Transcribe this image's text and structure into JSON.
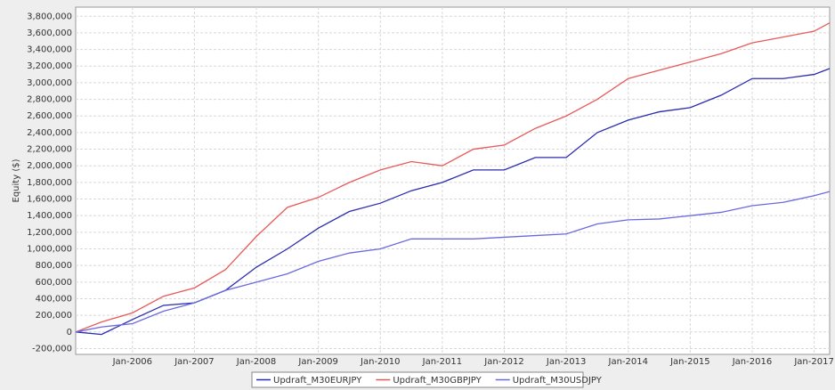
{
  "chart_data": {
    "type": "line",
    "y_label": "Equity ($)",
    "x": [
      "2005-02",
      "2005-07",
      "2006-01",
      "2006-07",
      "2007-01",
      "2007-07",
      "2008-01",
      "2008-07",
      "2009-01",
      "2009-07",
      "2010-01",
      "2010-07",
      "2011-01",
      "2011-07",
      "2012-01",
      "2012-07",
      "2013-01",
      "2013-07",
      "2014-01",
      "2014-07",
      "2015-01",
      "2015-07",
      "2016-01",
      "2016-07",
      "2017-01",
      "2017-04"
    ],
    "series": [
      {
        "name": "Updraft_M30EURJPY",
        "color": "#2b2bb0",
        "values": [
          0,
          -30000,
          150000,
          320000,
          350000,
          500000,
          780000,
          1000000,
          1250000,
          1450000,
          1550000,
          1700000,
          1800000,
          1950000,
          1950000,
          2100000,
          2100000,
          2400000,
          2550000,
          2650000,
          2700000,
          2850000,
          3050000,
          3050000,
          3100000,
          3170000
        ]
      },
      {
        "name": "Updraft_M30GBPJPY",
        "color": "#e85a5a",
        "values": [
          0,
          120000,
          230000,
          430000,
          530000,
          750000,
          1150000,
          1500000,
          1620000,
          1800000,
          1950000,
          2050000,
          2000000,
          2200000,
          2250000,
          2450000,
          2600000,
          2800000,
          3050000,
          3150000,
          3250000,
          3350000,
          3480000,
          3550000,
          3620000,
          3720000
        ]
      },
      {
        "name": "Updraft_M30USDJPY",
        "color": "#6a6ae0",
        "values": [
          0,
          60000,
          100000,
          250000,
          350000,
          500000,
          600000,
          700000,
          850000,
          950000,
          1000000,
          1120000,
          1120000,
          1120000,
          1140000,
          1160000,
          1180000,
          1300000,
          1350000,
          1360000,
          1400000,
          1440000,
          1520000,
          1560000,
          1640000,
          1690000
        ]
      }
    ],
    "xlim": [
      "2005-02",
      "2017-04"
    ],
    "xticks": [
      {
        "value": "2006-01",
        "label": "Jan-2006"
      },
      {
        "value": "2007-01",
        "label": "Jan-2007"
      },
      {
        "value": "2008-01",
        "label": "Jan-2008"
      },
      {
        "value": "2009-01",
        "label": "Jan-2009"
      },
      {
        "value": "2010-01",
        "label": "Jan-2010"
      },
      {
        "value": "2011-01",
        "label": "Jan-2011"
      },
      {
        "value": "2012-01",
        "label": "Jan-2012"
      },
      {
        "value": "2013-01",
        "label": "Jan-2013"
      },
      {
        "value": "2014-01",
        "label": "Jan-2014"
      },
      {
        "value": "2015-01",
        "label": "Jan-2015"
      },
      {
        "value": "2016-01",
        "label": "Jan-2016"
      },
      {
        "value": "2017-01",
        "label": "Jan-2017"
      }
    ],
    "ylim": [
      -270000,
      3910000
    ],
    "yticks": [
      {
        "value": -200000,
        "label": "-200,000"
      },
      0,
      {
        "value": 200000,
        "label": "200,000"
      },
      {
        "value": 400000,
        "label": "400,000"
      },
      {
        "value": 600000,
        "label": "600,000"
      },
      {
        "value": 800000,
        "label": "800,000"
      },
      {
        "value": 1000000,
        "label": "1,000,000"
      },
      {
        "value": 1200000,
        "label": "1,200,000"
      },
      {
        "value": 1400000,
        "label": "1,400,000"
      },
      {
        "value": 1600000,
        "label": "1,600,000"
      },
      {
        "value": 1800000,
        "label": "1,800,000"
      },
      {
        "value": 2000000,
        "label": "2,000,000"
      },
      {
        "value": 2200000,
        "label": "2,200,000"
      },
      {
        "value": 2400000,
        "label": "2,400,000"
      },
      {
        "value": 2600000,
        "label": "2,600,000"
      },
      {
        "value": 2800000,
        "label": "2,800,000"
      },
      {
        "value": 3000000,
        "label": "3,000,000"
      },
      {
        "value": 3200000,
        "label": "3,200,000"
      },
      {
        "value": 3400000,
        "label": "3,400,000"
      },
      {
        "value": 3600000,
        "label": "3,600,000"
      },
      {
        "value": 3800000,
        "label": "3,800,000"
      }
    ],
    "grid": true
  }
}
